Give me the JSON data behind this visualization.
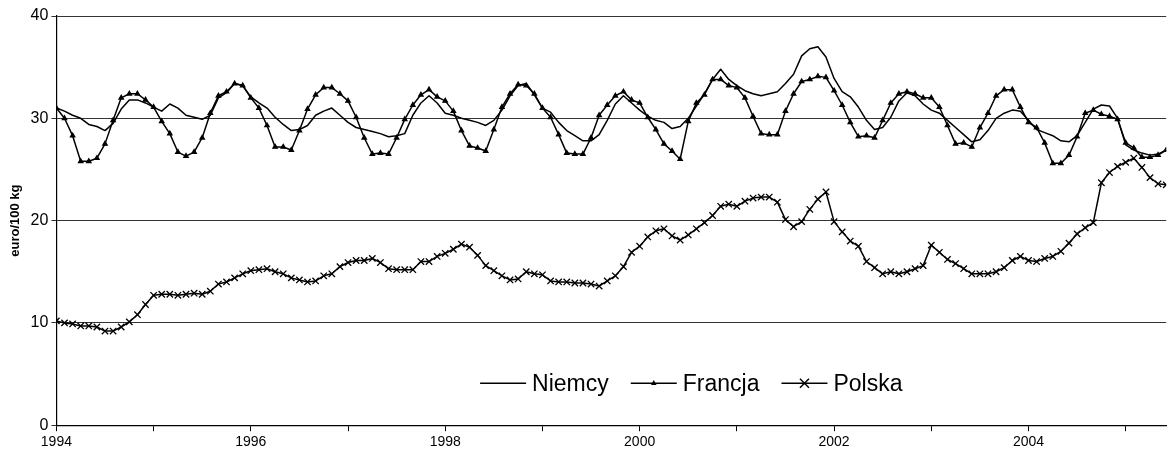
{
  "chart_data": {
    "type": "line",
    "ylabel": "euro/100 kg",
    "x": [
      "1994-01",
      "1994-02",
      "1994-03",
      "1994-04",
      "1994-05",
      "1994-06",
      "1994-07",
      "1994-08",
      "1994-09",
      "1994-10",
      "1994-11",
      "1994-12",
      "1995-01",
      "1995-02",
      "1995-03",
      "1995-04",
      "1995-05",
      "1995-06",
      "1995-07",
      "1995-08",
      "1995-09",
      "1995-10",
      "1995-11",
      "1995-12",
      "1996-01",
      "1996-02",
      "1996-03",
      "1996-04",
      "1996-05",
      "1996-06",
      "1996-07",
      "1996-08",
      "1996-09",
      "1996-10",
      "1996-11",
      "1996-12",
      "1997-01",
      "1997-02",
      "1997-03",
      "1997-04",
      "1997-05",
      "1997-06",
      "1997-07",
      "1997-08",
      "1997-09",
      "1997-10",
      "1997-11",
      "1997-12",
      "1998-01",
      "1998-02",
      "1998-03",
      "1998-04",
      "1998-05",
      "1998-06",
      "1998-07",
      "1998-08",
      "1998-09",
      "1998-10",
      "1998-11",
      "1998-12",
      "1999-01",
      "1999-02",
      "1999-03",
      "1999-04",
      "1999-05",
      "1999-06",
      "1999-07",
      "1999-08",
      "1999-09",
      "1999-10",
      "1999-11",
      "1999-12",
      "2000-01",
      "2000-02",
      "2000-03",
      "2000-04",
      "2000-05",
      "2000-06",
      "2000-07",
      "2000-08",
      "2000-09",
      "2000-10",
      "2000-11",
      "2000-12",
      "2001-01",
      "2001-02",
      "2001-03",
      "2001-04",
      "2001-05",
      "2001-06",
      "2001-07",
      "2001-08",
      "2001-09",
      "2001-10",
      "2001-11",
      "2001-12",
      "2002-01",
      "2002-02",
      "2002-03",
      "2002-04",
      "2002-05",
      "2002-06",
      "2002-07",
      "2002-08",
      "2002-09",
      "2002-10",
      "2002-11",
      "2002-12",
      "2003-01",
      "2003-02",
      "2003-03",
      "2003-04",
      "2003-05",
      "2003-06",
      "2003-07",
      "2003-08",
      "2003-09",
      "2003-10",
      "2003-11",
      "2003-12",
      "2004-01",
      "2004-02",
      "2004-03",
      "2004-04",
      "2004-05",
      "2004-06",
      "2004-07",
      "2004-08",
      "2004-09",
      "2004-10",
      "2004-11",
      "2004-12",
      "2005-01",
      "2005-02",
      "2005-03",
      "2005-04",
      "2005-05",
      "2005-06"
    ],
    "series": [
      {
        "name": "Niemcy",
        "color": "#000000",
        "marker": "none",
        "values": [
          31.0,
          30.7,
          30.3,
          30.0,
          29.4,
          29.2,
          28.8,
          29.5,
          30.9,
          31.8,
          31.8,
          31.5,
          31.1,
          30.7,
          31.4,
          31.0,
          30.3,
          30.1,
          29.9,
          30.3,
          32.0,
          32.5,
          33.4,
          33.2,
          32.1,
          31.5,
          31.0,
          30.1,
          29.4,
          28.8,
          28.9,
          29.3,
          30.3,
          30.7,
          31.0,
          30.3,
          29.6,
          29.1,
          28.9,
          28.7,
          28.5,
          28.2,
          28.3,
          28.5,
          30.3,
          31.5,
          32.2,
          31.5,
          30.5,
          30.3,
          30.0,
          29.8,
          29.6,
          29.3,
          29.8,
          30.8,
          32.2,
          33.2,
          33.4,
          32.3,
          31.0,
          30.6,
          29.6,
          28.8,
          28.3,
          27.8,
          27.8,
          28.4,
          29.8,
          31.4,
          32.2,
          31.5,
          30.8,
          30.2,
          29.8,
          29.6,
          29.0,
          29.2,
          30.0,
          31.2,
          32.4,
          33.8,
          34.8,
          33.8,
          33.2,
          32.7,
          32.4,
          32.2,
          32.4,
          32.6,
          33.4,
          34.3,
          36.1,
          36.8,
          37.0,
          36.0,
          33.9,
          32.6,
          32.1,
          31.1,
          29.8,
          28.9,
          29.1,
          30.1,
          31.7,
          32.5,
          32.2,
          31.4,
          30.8,
          30.5,
          29.8,
          29.1,
          28.4,
          27.7,
          27.9,
          28.8,
          30.0,
          30.5,
          30.8,
          30.7,
          29.8,
          28.9,
          28.6,
          28.3,
          27.8,
          27.7,
          28.3,
          29.6,
          30.9,
          31.3,
          31.2,
          30.0,
          27.4,
          26.9,
          26.6,
          26.4,
          26.5,
          26.9
        ]
      },
      {
        "name": "Francja",
        "color": "#000000",
        "marker": "triangle",
        "values": [
          31.0,
          30.0,
          28.3,
          25.8,
          25.8,
          26.1,
          27.5,
          29.8,
          32.0,
          32.4,
          32.4,
          31.8,
          31.1,
          29.7,
          28.5,
          26.7,
          26.3,
          26.7,
          28.1,
          30.5,
          32.2,
          32.6,
          33.4,
          33.2,
          32.0,
          31.0,
          29.3,
          27.2,
          27.2,
          26.9,
          28.8,
          30.9,
          32.3,
          33.0,
          33.0,
          32.4,
          31.7,
          30.1,
          28.1,
          26.5,
          26.6,
          26.5,
          28.1,
          29.9,
          31.3,
          32.3,
          32.8,
          32.1,
          31.7,
          30.7,
          28.8,
          27.3,
          27.1,
          26.8,
          28.9,
          31.1,
          32.4,
          33.3,
          33.2,
          32.4,
          31.0,
          30.1,
          28.4,
          26.6,
          26.5,
          26.5,
          28.1,
          30.3,
          31.3,
          32.2,
          32.6,
          31.8,
          31.5,
          30.1,
          28.9,
          27.5,
          26.8,
          26.0,
          29.7,
          31.5,
          32.3,
          33.8,
          33.8,
          33.2,
          33.0,
          32.0,
          30.2,
          28.5,
          28.4,
          28.4,
          30.7,
          32.4,
          33.6,
          33.8,
          34.1,
          34.0,
          32.7,
          31.3,
          29.6,
          28.2,
          28.3,
          28.1,
          29.8,
          31.5,
          32.4,
          32.6,
          32.4,
          32.0,
          32.0,
          31.1,
          29.3,
          27.5,
          27.6,
          27.2,
          29.1,
          30.5,
          32.2,
          32.8,
          32.8,
          31.1,
          29.6,
          29.1,
          27.6,
          25.6,
          25.6,
          26.4,
          28.2,
          30.5,
          30.8,
          30.4,
          30.2,
          29.9,
          27.6,
          27.1,
          26.2,
          26.2,
          26.4,
          26.9
        ]
      },
      {
        "name": "Polska",
        "color": "#000000",
        "marker": "cross",
        "values": [
          10.2,
          10.0,
          9.9,
          9.7,
          9.7,
          9.6,
          9.2,
          9.2,
          9.6,
          10.1,
          10.8,
          11.8,
          12.7,
          12.8,
          12.8,
          12.7,
          12.8,
          12.9,
          12.8,
          13.1,
          13.8,
          14.0,
          14.4,
          14.8,
          15.1,
          15.2,
          15.3,
          15.0,
          14.8,
          14.4,
          14.2,
          14.0,
          14.1,
          14.6,
          14.8,
          15.5,
          15.9,
          16.1,
          16.1,
          16.3,
          15.9,
          15.3,
          15.2,
          15.2,
          15.2,
          16.0,
          16.0,
          16.5,
          16.8,
          17.2,
          17.7,
          17.4,
          16.6,
          15.6,
          15.1,
          14.6,
          14.2,
          14.3,
          15.0,
          14.8,
          14.7,
          14.1,
          14.0,
          14.0,
          13.9,
          13.9,
          13.8,
          13.6,
          14.1,
          14.6,
          15.5,
          16.9,
          17.5,
          18.4,
          19.0,
          19.2,
          18.5,
          18.1,
          18.6,
          19.2,
          19.8,
          20.5,
          21.4,
          21.6,
          21.4,
          21.9,
          22.2,
          22.3,
          22.3,
          21.8,
          20.1,
          19.4,
          19.9,
          21.1,
          22.1,
          22.8,
          19.9,
          18.9,
          18.0,
          17.5,
          16.0,
          15.4,
          14.8,
          15.0,
          14.8,
          15.0,
          15.3,
          15.6,
          17.6,
          16.9,
          16.2,
          15.8,
          15.3,
          14.8,
          14.8,
          14.8,
          15.0,
          15.4,
          16.1,
          16.5,
          16.1,
          16.0,
          16.3,
          16.5,
          17.0,
          17.8,
          18.7,
          19.3,
          19.8,
          23.7,
          24.7,
          25.3,
          25.7,
          26.1,
          25.2,
          24.2,
          23.6,
          23.5
        ]
      }
    ],
    "xlim": [
      "1994-01",
      "2005-06"
    ],
    "xticks": [
      "1994",
      {
        "value": "1995",
        "label": null
      },
      "1996",
      {
        "value": "1997",
        "label": null
      },
      "1998",
      {
        "value": "1999",
        "label": null
      },
      "2000",
      {
        "value": "2001",
        "label": null
      },
      "2002",
      {
        "value": "2003",
        "label": null
      },
      "2004",
      {
        "value": "2005",
        "label": null
      }
    ],
    "ylim": [
      0,
      40
    ],
    "yticks": [
      0,
      10,
      20,
      30,
      40
    ],
    "grid": "y",
    "legend": "bottom",
    "line_style": "solid"
  }
}
